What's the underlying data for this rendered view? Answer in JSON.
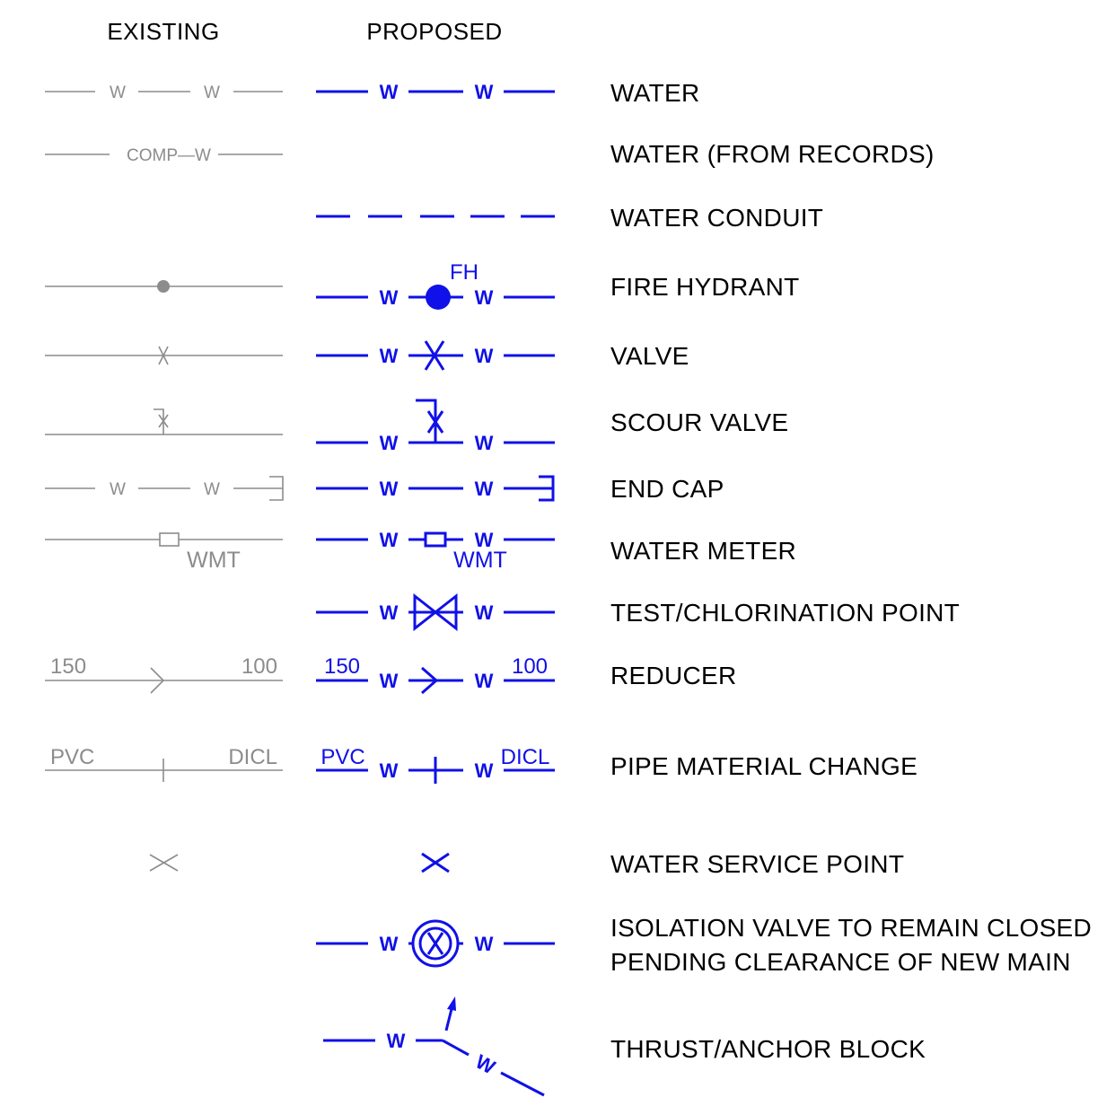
{
  "headers": {
    "existing": "EXISTING",
    "proposed": "PROPOSED"
  },
  "line_letter": "W",
  "water_records_label": "COMP—W",
  "fire_hydrant_tag": "FH",
  "water_meter_tag": "WMT",
  "reducer": {
    "from_size": "150",
    "to_size": "100"
  },
  "material_change": {
    "from_material": "PVC",
    "to_material": "DICL"
  },
  "descriptions": [
    "WATER",
    "WATER (FROM RECORDS)",
    "WATER CONDUIT",
    "FIRE HYDRANT",
    "VALVE",
    "SCOUR VALVE",
    "END CAP",
    "WATER METER",
    "TEST/CHLORINATION POINT",
    "REDUCER",
    "PIPE MATERIAL CHANGE",
    "WATER SERVICE POINT",
    "ISOLATION VALVE TO REMAIN CLOSED",
    "PENDING CLEARANCE OF NEW MAIN",
    "THRUST/ANCHOR BLOCK"
  ],
  "colors": {
    "existing": "#8c8c8c",
    "proposed": "#1010e8",
    "text": "#000000"
  }
}
